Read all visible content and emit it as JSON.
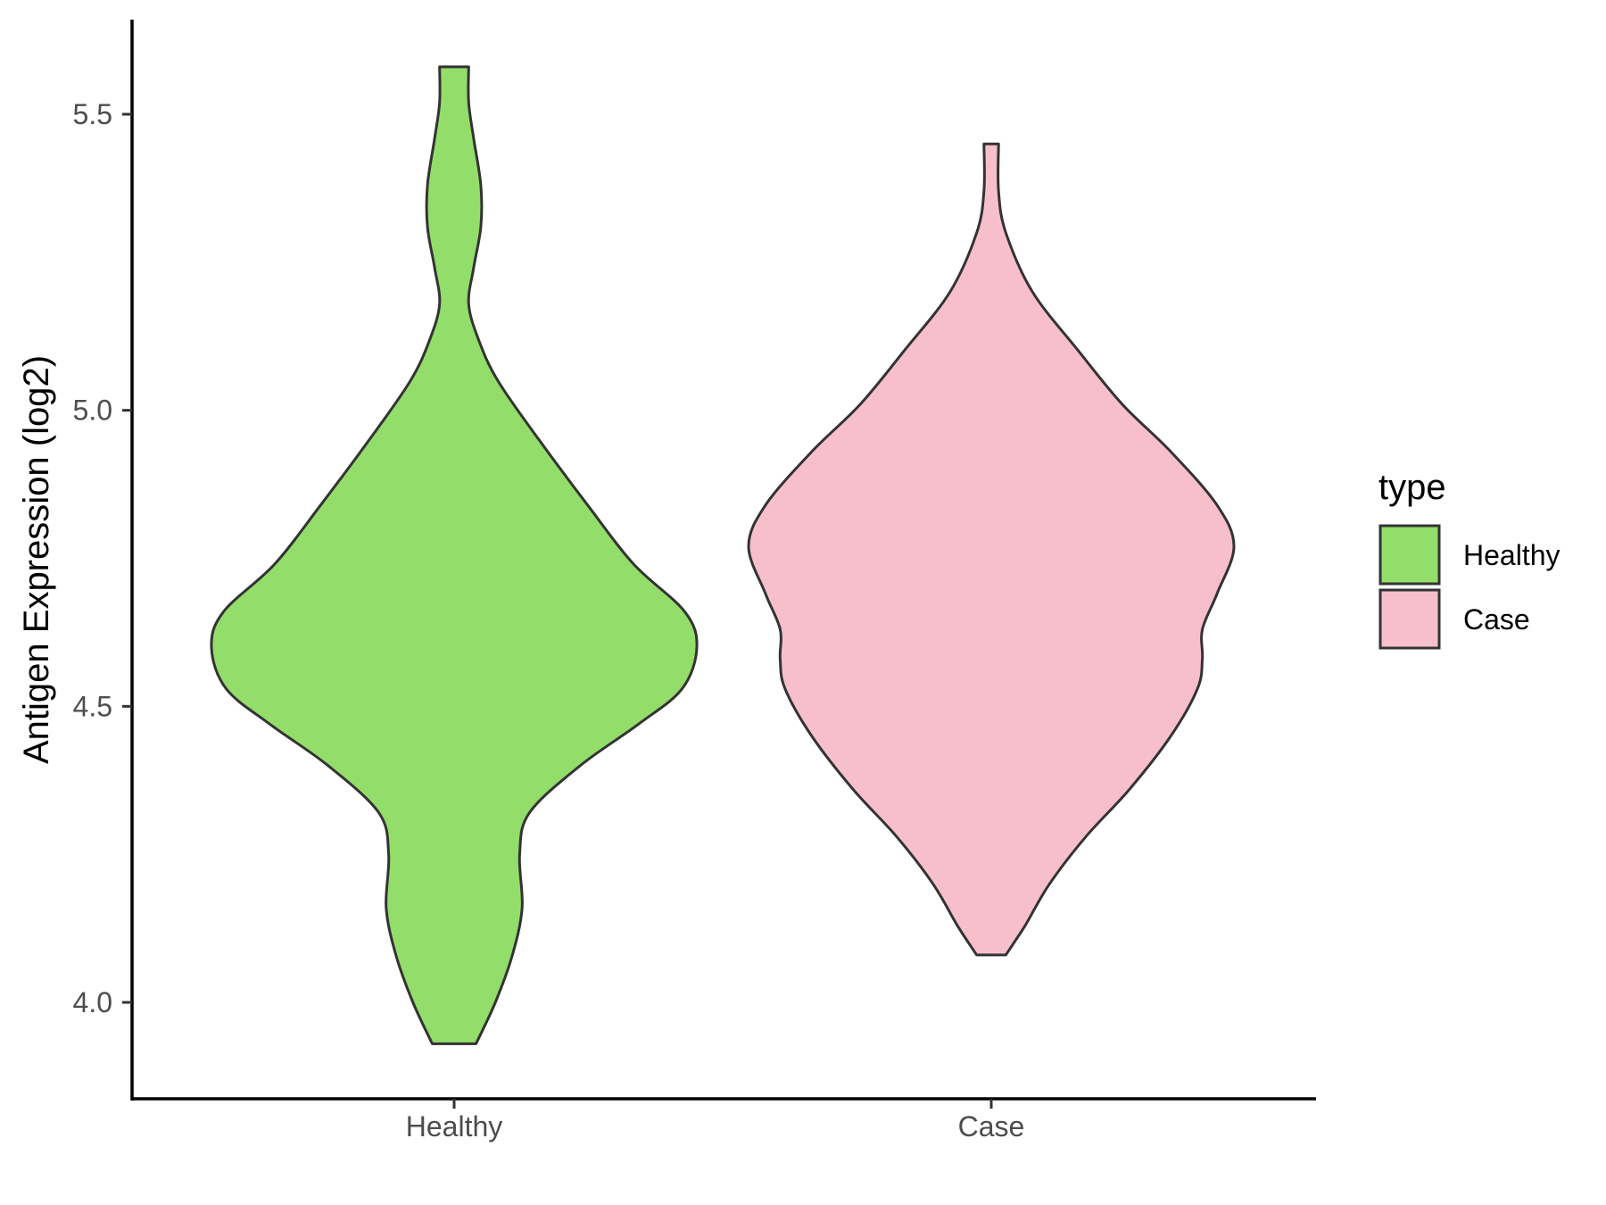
{
  "chart_data": {
    "type": "violin",
    "title": "",
    "xlabel": "",
    "ylabel": "Antigen Expression (log2)",
    "ylim": [
      3.86,
      5.66
    ],
    "yticks": [
      "4.0",
      "4.5",
      "5.0",
      "5.5"
    ],
    "categories": [
      "Healthy",
      "Case"
    ],
    "grid": false,
    "legend": {
      "title": "type",
      "position": "right",
      "entries": [
        "Healthy",
        "Case"
      ]
    },
    "series": [
      {
        "name": "Healthy",
        "color": "#93DD6A",
        "range": [
          3.93,
          5.58
        ],
        "density_profile": [
          [
            3.93,
            0.09
          ],
          [
            4.0,
            0.17
          ],
          [
            4.08,
            0.24
          ],
          [
            4.16,
            0.28
          ],
          [
            4.25,
            0.27
          ],
          [
            4.32,
            0.31
          ],
          [
            4.4,
            0.52
          ],
          [
            4.47,
            0.76
          ],
          [
            4.53,
            0.94
          ],
          [
            4.6,
            1.0
          ],
          [
            4.66,
            0.95
          ],
          [
            4.74,
            0.74
          ],
          [
            4.84,
            0.55
          ],
          [
            4.95,
            0.35
          ],
          [
            5.05,
            0.18
          ],
          [
            5.12,
            0.1
          ],
          [
            5.18,
            0.06
          ],
          [
            5.24,
            0.08
          ],
          [
            5.31,
            0.11
          ],
          [
            5.38,
            0.11
          ],
          [
            5.46,
            0.08
          ],
          [
            5.52,
            0.06
          ],
          [
            5.58,
            0.06
          ]
        ]
      },
      {
        "name": "Case",
        "color": "#F7BFCB",
        "range": [
          4.08,
          5.45
        ],
        "density_profile": [
          [
            4.08,
            0.06
          ],
          [
            4.13,
            0.14
          ],
          [
            4.2,
            0.24
          ],
          [
            4.28,
            0.39
          ],
          [
            4.36,
            0.57
          ],
          [
            4.45,
            0.74
          ],
          [
            4.53,
            0.85
          ],
          [
            4.58,
            0.87
          ],
          [
            4.63,
            0.87
          ],
          [
            4.69,
            0.93
          ],
          [
            4.77,
            1.0
          ],
          [
            4.84,
            0.93
          ],
          [
            4.93,
            0.74
          ],
          [
            5.01,
            0.54
          ],
          [
            5.1,
            0.36
          ],
          [
            5.2,
            0.17
          ],
          [
            5.3,
            0.06
          ],
          [
            5.37,
            0.03
          ],
          [
            5.45,
            0.03
          ]
        ]
      }
    ]
  }
}
